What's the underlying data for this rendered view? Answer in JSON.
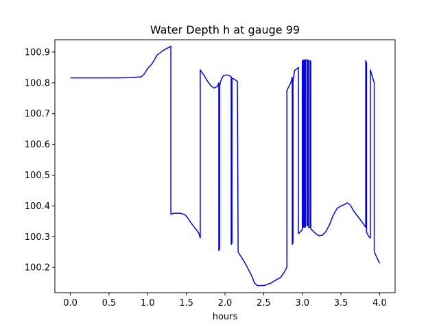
{
  "chart_data": {
    "type": "line",
    "title": "Water Depth h at gauge 99",
    "xlabel": "hours",
    "ylabel": "",
    "xlim": [
      -0.2,
      4.2
    ],
    "ylim": [
      100.118,
      100.94
    ],
    "xticks": [
      0.0,
      0.5,
      1.0,
      1.5,
      2.0,
      2.5,
      3.0,
      3.5,
      4.0
    ],
    "xtick_labels": [
      "0.0",
      "0.5",
      "1.0",
      "1.5",
      "2.0",
      "2.5",
      "3.0",
      "3.5",
      "4.0"
    ],
    "yticks": [
      100.2,
      100.3,
      100.4,
      100.5,
      100.6,
      100.7,
      100.8,
      100.9
    ],
    "ytick_labels": [
      "100.2",
      "100.3",
      "100.4",
      "100.5",
      "100.6",
      "100.7",
      "100.8",
      "100.9"
    ],
    "grid": false,
    "series": [
      {
        "color": "#0000ff",
        "x": [
          0.0,
          0.6,
          0.8,
          0.92,
          0.96,
          1.0,
          1.05,
          1.08,
          1.12,
          1.2,
          1.3,
          1.3,
          1.34,
          1.42,
          1.48,
          1.52,
          1.56,
          1.6,
          1.66,
          1.68,
          1.68,
          1.7,
          1.74,
          1.78,
          1.82,
          1.86,
          1.9,
          1.92,
          1.92,
          1.93,
          1.93,
          1.95,
          1.98,
          2.02,
          2.06,
          2.08,
          2.08,
          2.09,
          2.09,
          2.12,
          2.16,
          2.16,
          2.17,
          2.17,
          2.2,
          2.25,
          2.3,
          2.35,
          2.38,
          2.42,
          2.48,
          2.52,
          2.6,
          2.65,
          2.72,
          2.76,
          2.8,
          2.8,
          2.85,
          2.87,
          2.87,
          2.88,
          2.88,
          2.9,
          2.95,
          2.95,
          2.99,
          3.0,
          3.0,
          3.01,
          3.01,
          3.02,
          3.02,
          3.03,
          3.03,
          3.04,
          3.04,
          3.06,
          3.06,
          3.07,
          3.07,
          3.08,
          3.08,
          3.1,
          3.1,
          3.11,
          3.11,
          3.14,
          3.18,
          3.22,
          3.26,
          3.3,
          3.35,
          3.4,
          3.45,
          3.5,
          3.55,
          3.58,
          3.62,
          3.66,
          3.72,
          3.78,
          3.82,
          3.82,
          3.83,
          3.83,
          3.86,
          3.88,
          3.88,
          3.93,
          3.93,
          3.94,
          4.0
        ],
        "y": [
          100.816,
          100.816,
          100.817,
          100.82,
          100.83,
          100.847,
          100.86,
          100.872,
          100.89,
          100.905,
          100.919,
          100.373,
          100.376,
          100.376,
          100.372,
          100.36,
          100.345,
          100.332,
          100.312,
          100.296,
          100.842,
          100.835,
          100.82,
          100.803,
          100.79,
          100.783,
          100.788,
          100.8,
          100.255,
          100.26,
          100.79,
          100.81,
          100.823,
          100.826,
          100.823,
          100.82,
          100.275,
          100.28,
          100.815,
          100.812,
          100.805,
          100.8,
          100.255,
          100.25,
          100.238,
          100.218,
          100.195,
          100.17,
          100.15,
          100.141,
          100.141,
          100.142,
          100.15,
          100.158,
          100.168,
          100.182,
          100.2,
          100.775,
          100.8,
          100.818,
          100.275,
          100.282,
          100.808,
          100.84,
          100.85,
          100.31,
          100.32,
          100.325,
          100.87,
          100.875,
          100.33,
          100.335,
          100.872,
          100.875,
          100.33,
          100.332,
          100.873,
          100.875,
          100.335,
          100.336,
          100.873,
          100.874,
          100.33,
          100.33,
          100.872,
          100.87,
          100.325,
          100.318,
          100.308,
          100.303,
          100.305,
          100.315,
          100.338,
          100.37,
          100.392,
          100.4,
          100.405,
          100.41,
          100.403,
          100.385,
          100.365,
          100.345,
          100.33,
          100.872,
          100.865,
          100.315,
          100.3,
          100.296,
          100.842,
          100.8,
          100.252,
          100.245,
          100.213
        ],
        "name": ""
      }
    ]
  }
}
